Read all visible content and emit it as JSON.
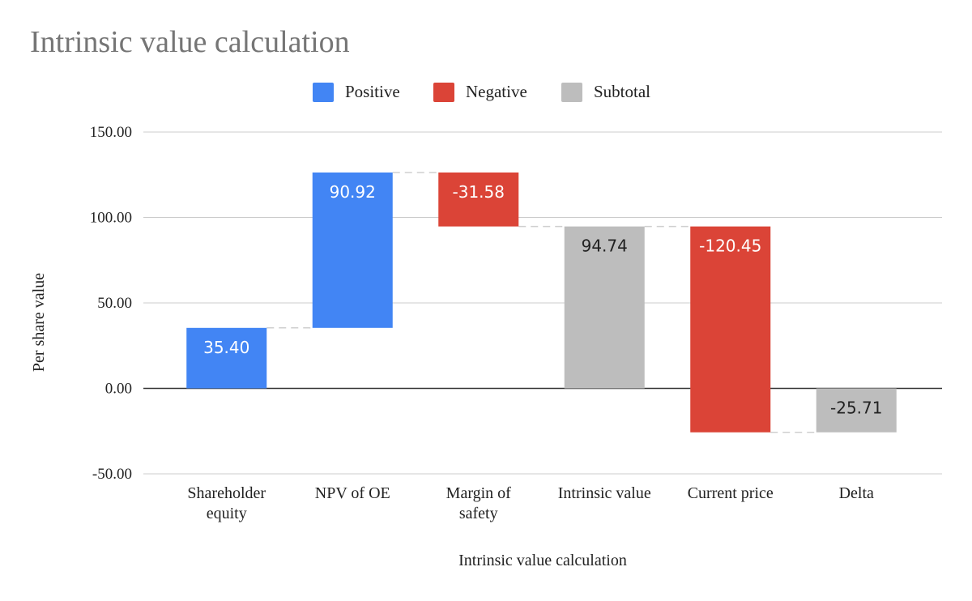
{
  "chart_data": {
    "type": "waterfall",
    "title": "Intrinsic value calculation",
    "xlabel": "Intrinsic value calculation",
    "ylabel": "Per share value",
    "ylim": [
      -50,
      150
    ],
    "yticks": [
      150,
      100,
      50,
      0,
      -50
    ],
    "ytick_labels": [
      "150.00",
      "100.00",
      "50.00",
      "0.00",
      "-50.00"
    ],
    "legend": [
      {
        "name": "Positive",
        "color": "#4285f4"
      },
      {
        "name": "Negative",
        "color": "#db4437"
      },
      {
        "name": "Subtotal",
        "color": "#bdbdbd"
      }
    ],
    "legend_position": "top",
    "categories": [
      {
        "label_lines": [
          "Shareholder",
          "equity"
        ]
      },
      {
        "label_lines": [
          "NPV of OE"
        ]
      },
      {
        "label_lines": [
          "Margin of",
          "safety"
        ]
      },
      {
        "label_lines": [
          "Intrinsic value"
        ]
      },
      {
        "label_lines": [
          "Current price"
        ]
      },
      {
        "label_lines": [
          "Delta"
        ]
      }
    ],
    "bars": [
      {
        "kind": "Positive",
        "start": 0,
        "end": 35.4,
        "label": "35.40"
      },
      {
        "kind": "Positive",
        "start": 35.4,
        "end": 126.32,
        "label": "90.92"
      },
      {
        "kind": "Negative",
        "start": 126.32,
        "end": 94.74,
        "label": "-31.58"
      },
      {
        "kind": "Subtotal",
        "start": 0,
        "end": 94.74,
        "label": "94.74"
      },
      {
        "kind": "Negative",
        "start": 94.74,
        "end": -25.71,
        "label": "-120.45"
      },
      {
        "kind": "Subtotal",
        "start": 0,
        "end": -25.71,
        "label": "-25.71"
      }
    ]
  }
}
